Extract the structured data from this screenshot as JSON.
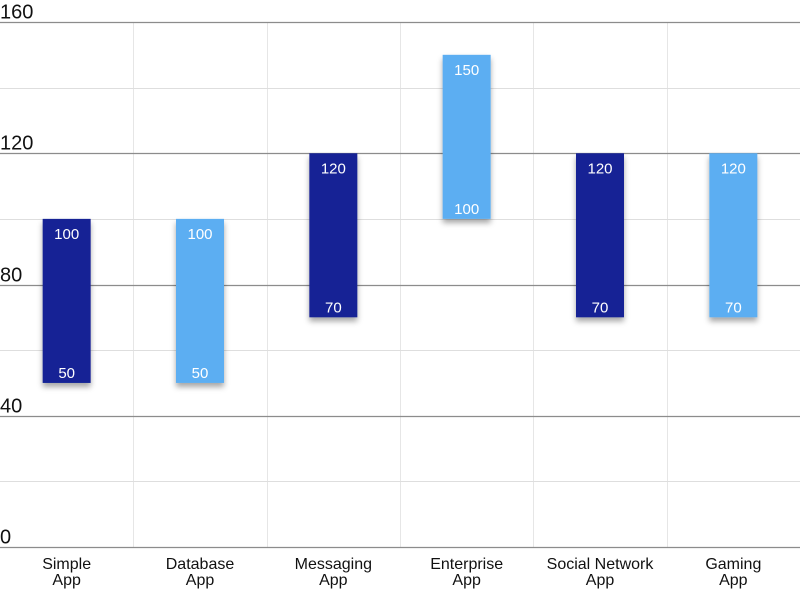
{
  "chart_data": {
    "type": "bar",
    "subtype": "floating-range",
    "title": "",
    "xlabel": "",
    "ylabel": "",
    "ylim": [
      0,
      160
    ],
    "major_ticks": [
      0,
      40,
      80,
      120,
      160
    ],
    "minor_ticks": [
      20,
      60,
      100,
      140
    ],
    "grid": true,
    "legend": "none",
    "categories": [
      [
        "Simple",
        "App"
      ],
      [
        "Database",
        "App"
      ],
      [
        "Messaging",
        "App"
      ],
      [
        "Enterprise",
        "App"
      ],
      [
        "Social Network",
        "App"
      ],
      [
        "Gaming",
        "App"
      ]
    ],
    "ranges": [
      {
        "low": 50,
        "high": 100
      },
      {
        "low": 50,
        "high": 100
      },
      {
        "low": 70,
        "high": 120
      },
      {
        "low": 100,
        "high": 150
      },
      {
        "low": 70,
        "high": 120
      },
      {
        "low": 70,
        "high": 120
      }
    ],
    "colors": [
      "#132495",
      "#5baef2",
      "#132495",
      "#5baef2",
      "#132495",
      "#5baef2"
    ]
  }
}
